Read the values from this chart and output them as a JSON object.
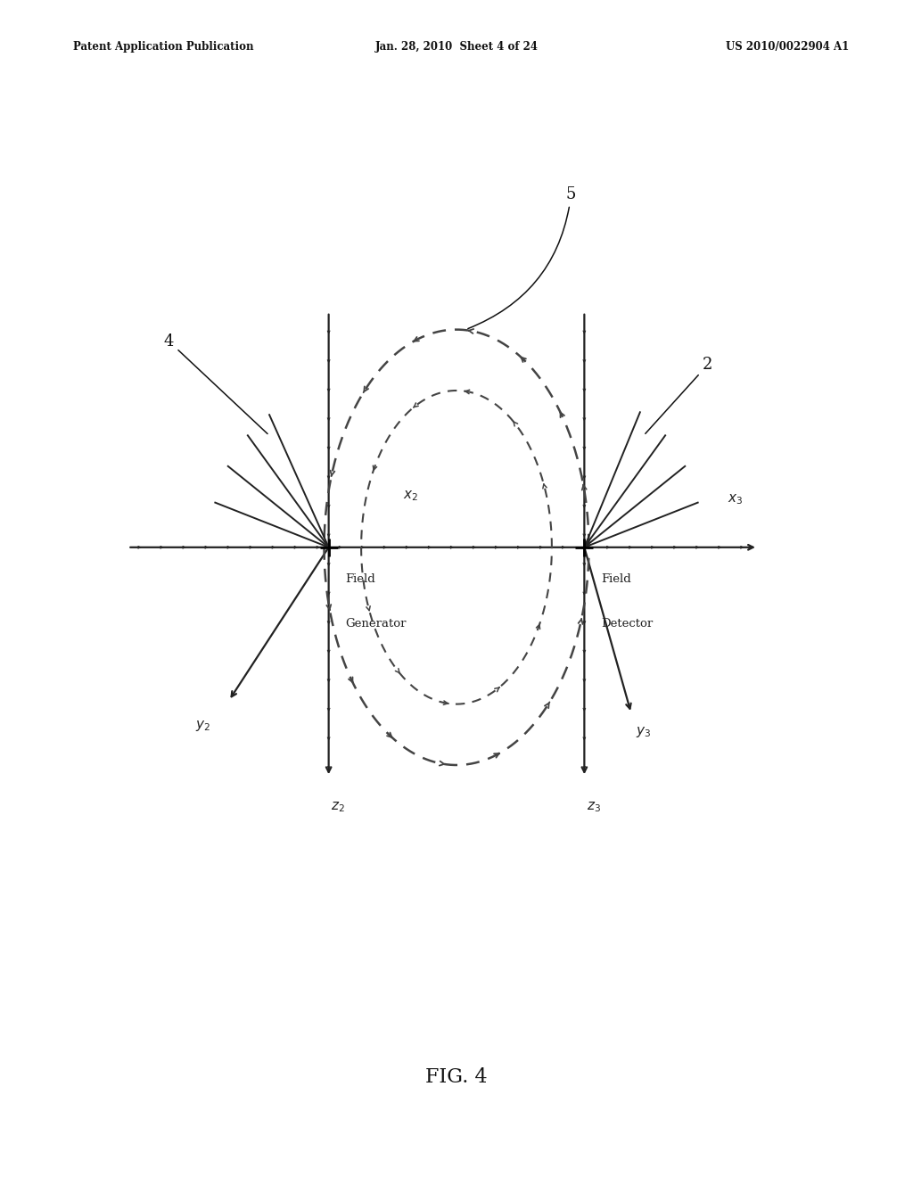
{
  "bg_color": "#ffffff",
  "header_left": "Patent Application Publication",
  "header_mid": "Jan. 28, 2010  Sheet 4 of 24",
  "header_right": "US 2010/0022904 A1",
  "fig_label": "FIG. 4",
  "n1x": 0.36,
  "n1y": 0.535,
  "n2x": 0.64,
  "n2y": 0.535,
  "arrow_color": "#222222",
  "dashed_color": "#444444"
}
